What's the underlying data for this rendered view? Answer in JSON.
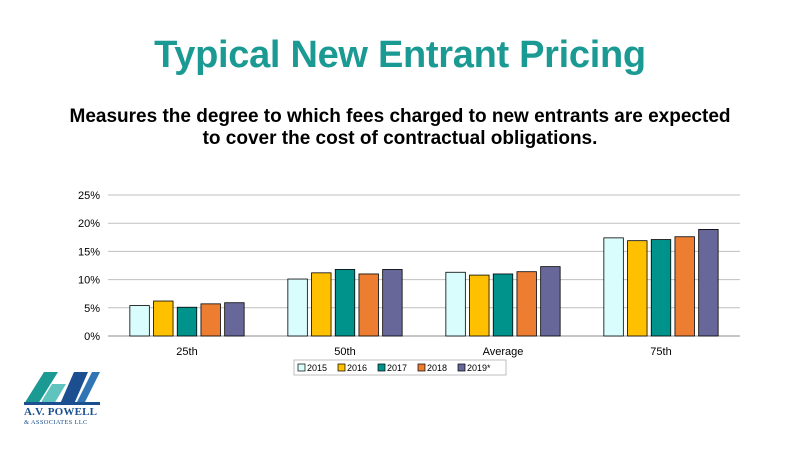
{
  "slide": {
    "title": "Typical New Entrant Pricing",
    "subtitle": "Measures the degree to which fees charged to new entrants are expected to cover the cost of contractual obligations."
  },
  "logo": {
    "name": "A.V. POWELL",
    "sub": "& ASSOCIATES LLC",
    "monogram": "AVP"
  },
  "chart_data": {
    "type": "bar",
    "categories": [
      "25th",
      "50th",
      "Average",
      "75th"
    ],
    "ylim": [
      0,
      0.25
    ],
    "yticks": [
      0,
      0.05,
      0.1,
      0.15,
      0.2,
      0.25
    ],
    "ytick_labels": [
      "0%",
      "5%",
      "10%",
      "15%",
      "20%",
      "25%"
    ],
    "grid": true,
    "legend_position": "bottom",
    "series": [
      {
        "name": "2015",
        "color": "#d9fdfd",
        "values": [
          0.054,
          0.101,
          0.113,
          0.174
        ]
      },
      {
        "name": "2016",
        "color": "#ffc000",
        "values": [
          0.062,
          0.112,
          0.108,
          0.169
        ]
      },
      {
        "name": "2017",
        "color": "#00938c",
        "values": [
          0.051,
          0.118,
          0.11,
          0.171
        ]
      },
      {
        "name": "2018",
        "color": "#ed7d31",
        "values": [
          0.057,
          0.11,
          0.114,
          0.176
        ]
      },
      {
        "name": "2019*",
        "color": "#676799",
        "values": [
          0.059,
          0.118,
          0.123,
          0.189
        ]
      }
    ]
  }
}
